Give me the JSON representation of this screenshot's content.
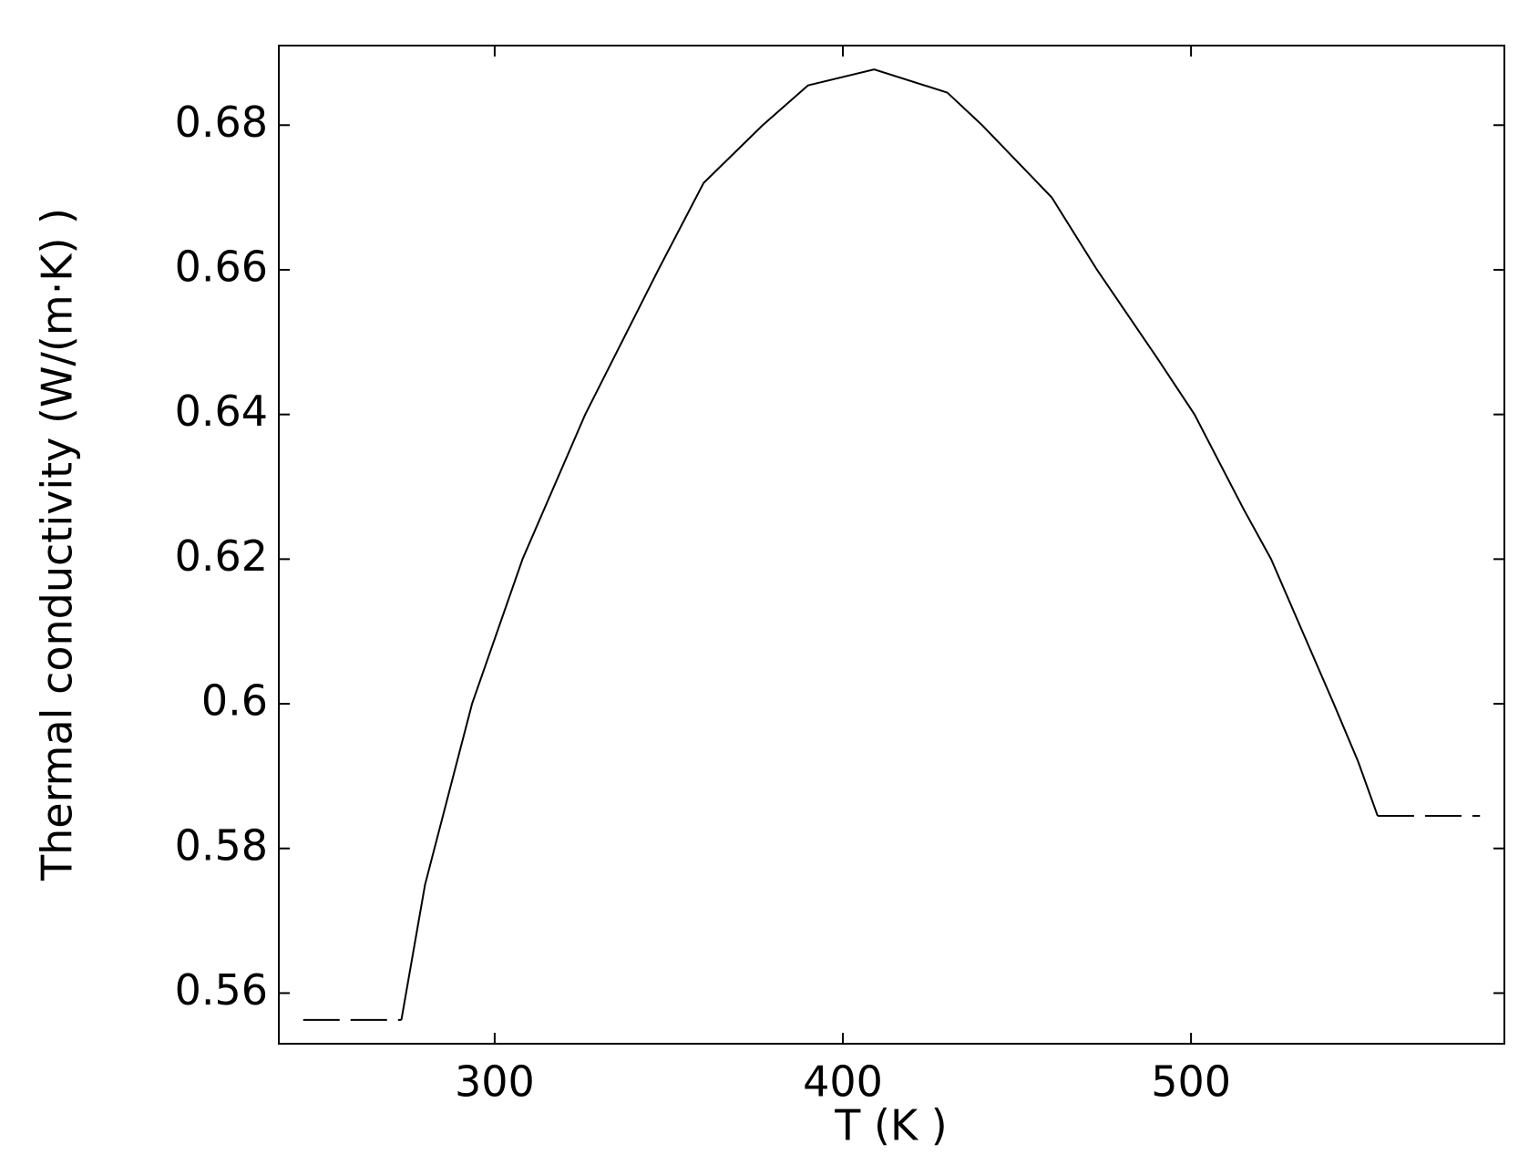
{
  "chart_data": {
    "type": "line",
    "xlabel": "T (K )",
    "ylabel": "Thermal conductivity  (W/(m·K) )",
    "xlim": [
      238,
      590
    ],
    "ylim": [
      0.553,
      0.691
    ],
    "xticks": [
      300,
      400,
      500
    ],
    "yticks": [
      0.56,
      0.58,
      {
        "value": 0.6,
        "label": "0.6"
      },
      0.62,
      0.64,
      0.66,
      0.68
    ],
    "series": [
      {
        "color": "#000000",
        "dashed": true,
        "x": [
          245,
          273.2
        ],
        "values": [
          0.5563,
          0.5563
        ]
      },
      {
        "color": "#000000",
        "dashed": false,
        "x": [
          273.2,
          280,
          293.5,
          308,
          326,
          347,
          360,
          377,
          390,
          409,
          430,
          440,
          460,
          473,
          490,
          501,
          515,
          523,
          532,
          541,
          548,
          553.6
        ],
        "values": [
          0.5563,
          0.575,
          0.6,
          0.62,
          0.64,
          0.66,
          0.672,
          0.68,
          0.6855,
          0.6877,
          0.6845,
          0.68,
          0.67,
          0.66,
          0.648,
          0.64,
          0.627,
          0.62,
          0.61,
          0.6,
          0.592,
          0.5845
        ]
      },
      {
        "color": "#000000",
        "dashed": true,
        "x": [
          553.6,
          583
        ],
        "values": [
          0.5845,
          0.5845
        ]
      }
    ]
  }
}
